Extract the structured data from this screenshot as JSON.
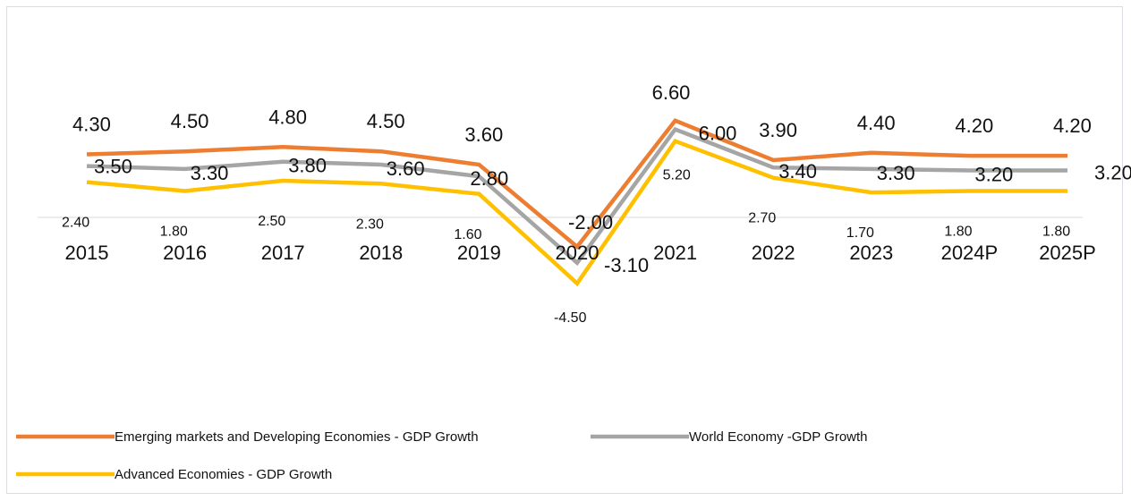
{
  "chart_data": {
    "type": "line",
    "title": "",
    "xlabel": "",
    "ylabel": "",
    "categories": [
      "2015",
      "2016",
      "2017",
      "2018",
      "2019",
      "2020",
      "2021",
      "2022",
      "2023",
      "2024P",
      "2025P"
    ],
    "ylim": [
      -4.5,
      6.6
    ],
    "grid": false,
    "legend_position": "bottom-left",
    "series": [
      {
        "name": "Emerging markets and Developing Economies - GDP Growth",
        "color": "#ED7D31",
        "values": [
          4.3,
          4.5,
          4.8,
          4.5,
          3.6,
          -2.0,
          6.6,
          3.9,
          4.4,
          4.2,
          4.2
        ],
        "labels": [
          "4.30",
          "4.50",
          "4.80",
          "4.50",
          "3.60",
          "-2.00",
          "6.60",
          "3.90",
          "4.40",
          "4.20",
          "4.20"
        ]
      },
      {
        "name": "World Economy -GDP Growth",
        "color": "#A5A5A5",
        "values": [
          3.5,
          3.3,
          3.8,
          3.6,
          2.8,
          -3.1,
          6.0,
          3.4,
          3.3,
          3.2,
          3.2
        ],
        "labels": [
          "3.50",
          "3.30",
          "3.80",
          "3.60",
          "2.80",
          "-3.10",
          "6.00",
          "3.40",
          "3.30",
          "3.20",
          "3.20"
        ]
      },
      {
        "name": "Advanced Economies - GDP Growth",
        "color": "#FFC000",
        "values": [
          2.4,
          1.8,
          2.5,
          2.3,
          1.6,
          -4.5,
          5.2,
          2.7,
          1.7,
          1.8,
          1.8
        ],
        "labels": [
          "2.40",
          "1.80",
          "2.50",
          "2.30",
          "1.60",
          "-4.50",
          "5.20",
          "2.70",
          "1.70",
          "1.80",
          "1.80"
        ]
      }
    ]
  }
}
